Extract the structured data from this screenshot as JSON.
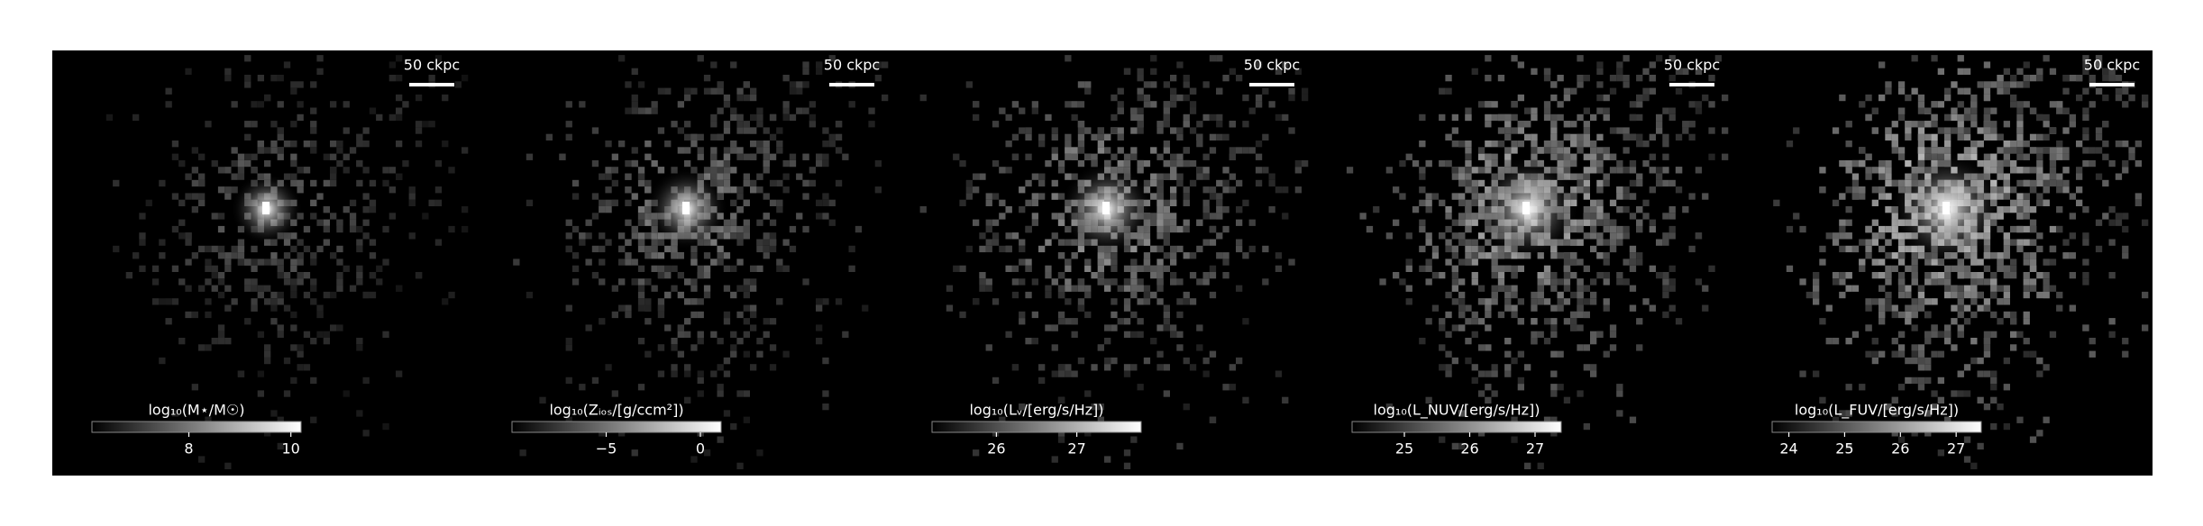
{
  "chart_data": [
    {
      "type": "image",
      "scale_label": "50 ckpc",
      "colorbar_label": "log₁₀(M⋆/M☉)",
      "clim": [
        6.1,
        10.2
      ],
      "cticks": [
        8,
        10
      ]
    },
    {
      "type": "image",
      "scale_label": "50 ckpc",
      "colorbar_label": "log₁₀(Zᵢₒₛ/[g/ccm²])",
      "clim": [
        -10,
        1.1
      ],
      "cticks": [
        {
          "value": -5,
          "label": "−5"
        },
        0
      ]
    },
    {
      "type": "image",
      "scale_label": "50 ckpc",
      "colorbar_label": "log₁₀(Lᵥ/[erg/s/Hz])",
      "clim": [
        25.2,
        27.8
      ],
      "cticks": [
        26,
        27
      ]
    },
    {
      "type": "image",
      "scale_label": "50 ckpc",
      "colorbar_label": "log₁₀(L_NUV/[erg/s/Hz])",
      "clim": [
        24.2,
        27.4
      ],
      "cticks": [
        25,
        26,
        27
      ]
    },
    {
      "type": "image",
      "scale_label": "50 ckpc",
      "colorbar_label": "log₁₀(L_FUV/[erg/s/Hz])",
      "clim": [
        23.7,
        27.45
      ],
      "cticks": [
        24,
        25,
        26,
        27
      ]
    }
  ]
}
